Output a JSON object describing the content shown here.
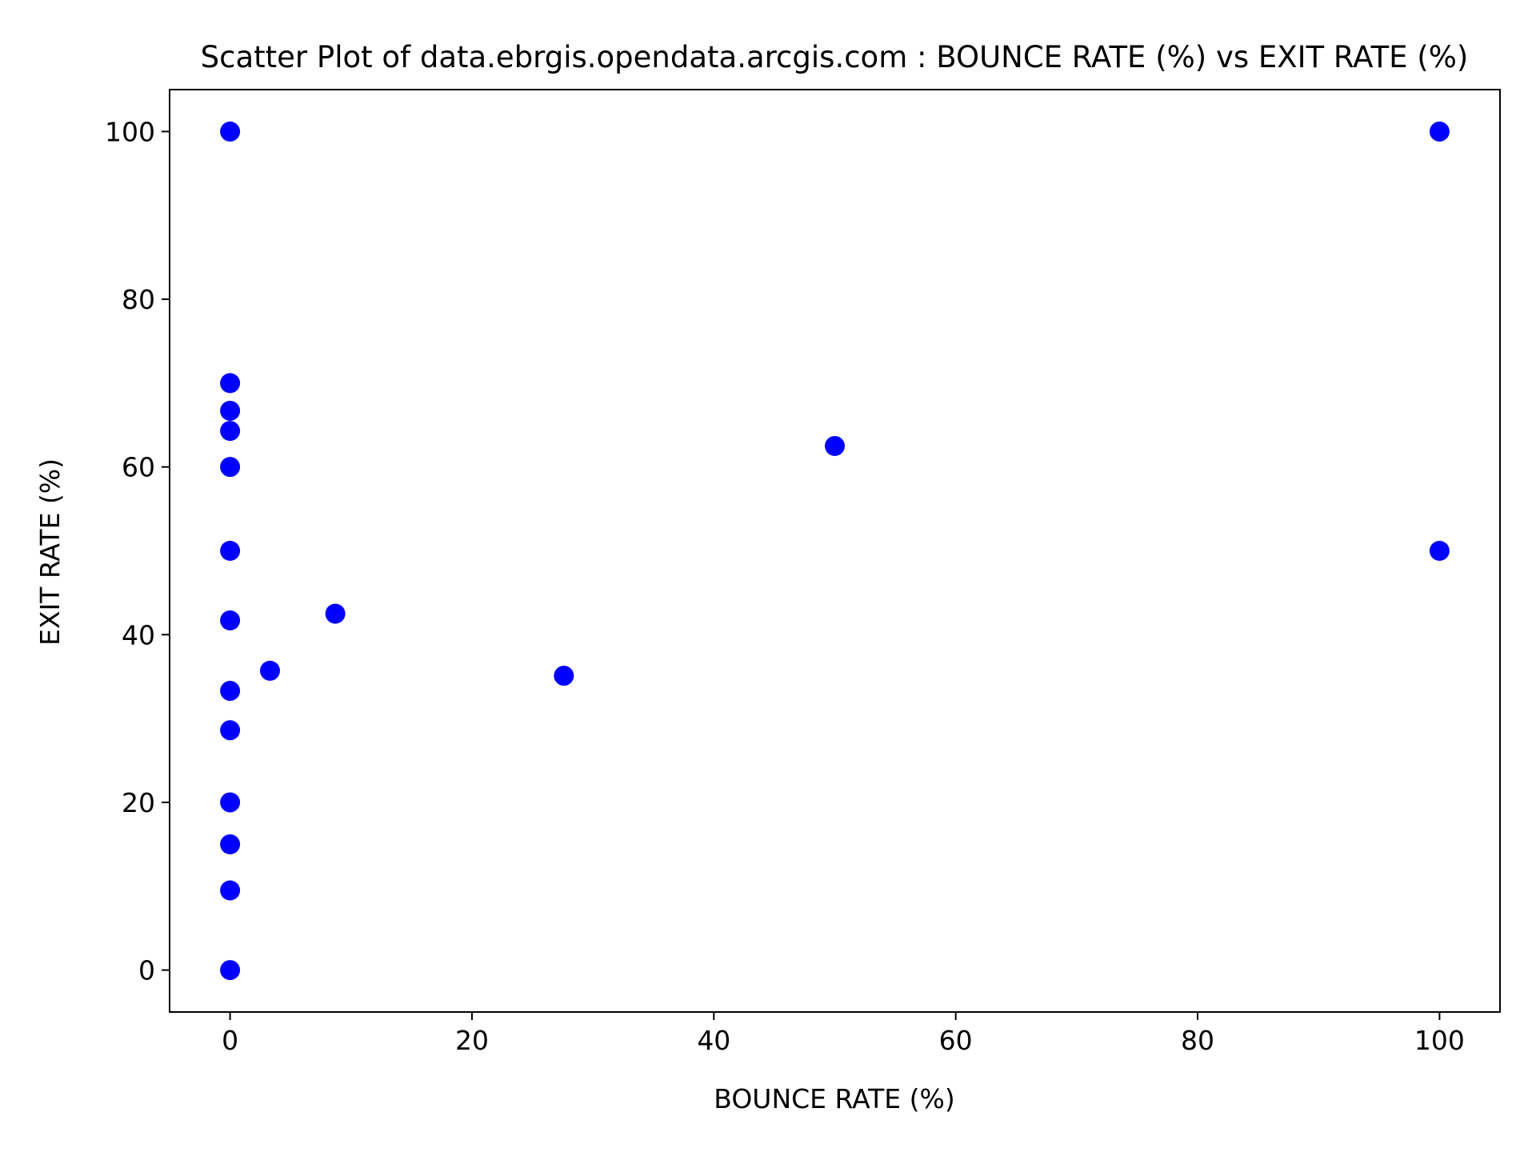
{
  "chart_data": {
    "type": "scatter",
    "title": "Scatter Plot of data.ebrgis.opendata.arcgis.com : BOUNCE RATE (%) vs EXIT RATE (%)",
    "xlabel": "BOUNCE RATE (%)",
    "ylabel": "EXIT RATE (%)",
    "xlim": [
      -5,
      105
    ],
    "ylim": [
      -5,
      105
    ],
    "xticks": [
      0,
      20,
      40,
      60,
      80,
      100
    ],
    "yticks": [
      0,
      20,
      40,
      60,
      80,
      100
    ],
    "grid": false,
    "legend": false,
    "marker_color": "#0000ff",
    "points": [
      {
        "x": 0,
        "y": 100
      },
      {
        "x": 0,
        "y": 70
      },
      {
        "x": 0,
        "y": 66.7
      },
      {
        "x": 0,
        "y": 64.3
      },
      {
        "x": 0,
        "y": 60
      },
      {
        "x": 0,
        "y": 50
      },
      {
        "x": 0,
        "y": 41.7
      },
      {
        "x": 0,
        "y": 33.3
      },
      {
        "x": 0,
        "y": 28.6
      },
      {
        "x": 0,
        "y": 20
      },
      {
        "x": 0,
        "y": 15
      },
      {
        "x": 0,
        "y": 9.5
      },
      {
        "x": 0,
        "y": 0
      },
      {
        "x": 3.3,
        "y": 35.7
      },
      {
        "x": 8.7,
        "y": 42.5
      },
      {
        "x": 27.6,
        "y": 35.1
      },
      {
        "x": 50,
        "y": 62.5
      },
      {
        "x": 100,
        "y": 100
      },
      {
        "x": 100,
        "y": 50
      }
    ]
  }
}
